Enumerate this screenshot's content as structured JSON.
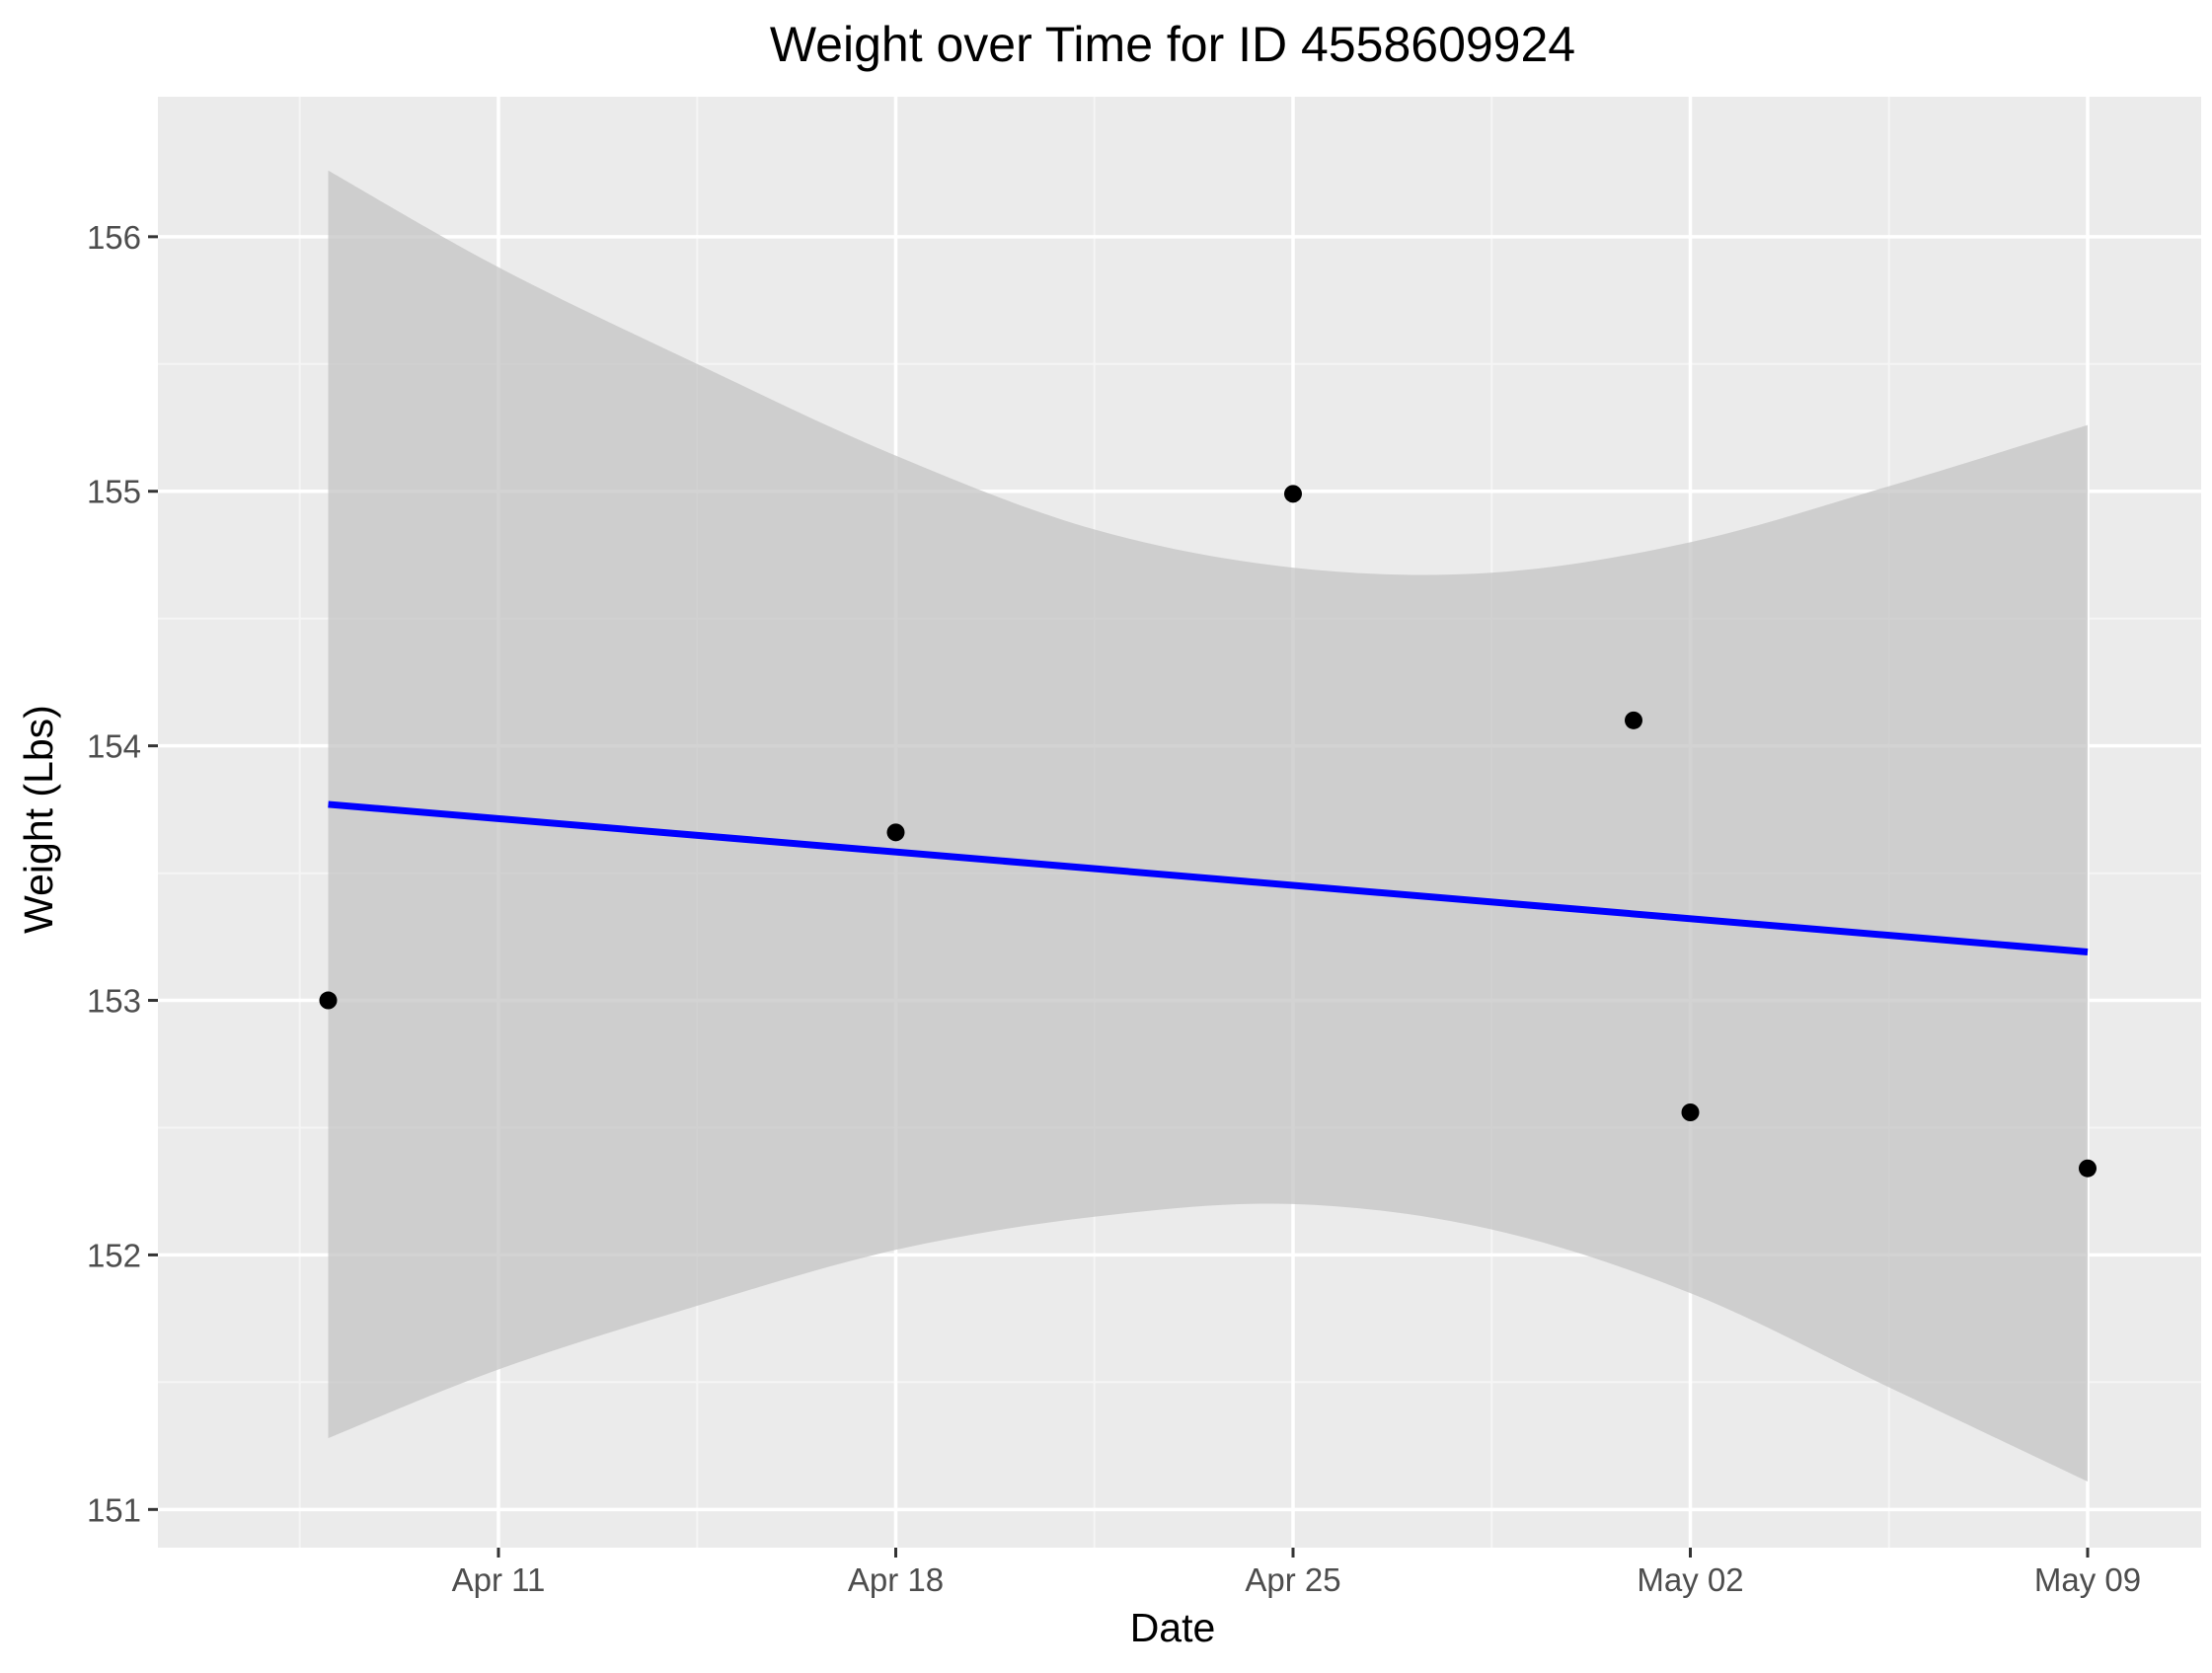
{
  "chart_data": {
    "type": "scatter",
    "title": "Weight over Time for ID 4558609924",
    "xlabel": "Date",
    "ylabel": "Weight (Lbs)",
    "x_scale": "date",
    "xlim": [
      "2016-04-05",
      "2016-05-11"
    ],
    "ylim": [
      150.85,
      156.55
    ],
    "x_ticks": [
      {
        "value": "2016-04-11",
        "label": "Apr 11"
      },
      {
        "value": "2016-04-18",
        "label": "Apr 18"
      },
      {
        "value": "2016-04-25",
        "label": "Apr 25"
      },
      {
        "value": "2016-05-02",
        "label": "May 02"
      },
      {
        "value": "2016-05-09",
        "label": "May 09"
      }
    ],
    "x_minor_ticks": [
      "2016-04-07 12:00",
      "2016-04-14 12:00",
      "2016-04-21 12:00",
      "2016-04-28 12:00",
      "2016-05-05 12:00"
    ],
    "y_ticks": [
      151,
      152,
      153,
      154,
      155,
      156
    ],
    "y_minor_ticks": [
      151.5,
      152.5,
      153.5,
      154.5,
      155.5
    ],
    "grid": true,
    "points": [
      {
        "x": "2016-04-08",
        "y": 153.0
      },
      {
        "x": "2016-04-18",
        "y": 153.66
      },
      {
        "x": "2016-04-25",
        "y": 154.99
      },
      {
        "x": "2016-05-01",
        "y": 154.1
      },
      {
        "x": "2016-05-02",
        "y": 152.56
      },
      {
        "x": "2016-05-09",
        "y": 152.34
      }
    ],
    "trend_line": {
      "method": "linear",
      "start": {
        "x": "2016-04-08",
        "y": 153.77
      },
      "end": {
        "x": "2016-05-09",
        "y": 153.19
      }
    },
    "confidence_band": [
      {
        "x": "2016-04-08",
        "lower": 151.28,
        "upper": 156.26
      },
      {
        "x": "2016-04-11",
        "lower": 151.55,
        "upper": 155.88
      },
      {
        "x": "2016-04-14 12:00",
        "lower": 151.8,
        "upper": 155.5
      },
      {
        "x": "2016-04-18",
        "lower": 152.02,
        "upper": 155.14
      },
      {
        "x": "2016-04-21 12:00",
        "lower": 152.15,
        "upper": 154.85
      },
      {
        "x": "2016-04-25",
        "lower": 152.2,
        "upper": 154.7
      },
      {
        "x": "2016-04-28 12:00",
        "lower": 152.1,
        "upper": 154.68
      },
      {
        "x": "2016-05-02",
        "lower": 151.85,
        "upper": 154.8
      },
      {
        "x": "2016-05-05 12:00",
        "lower": 151.48,
        "upper": 155.02
      },
      {
        "x": "2016-05-09",
        "lower": 151.11,
        "upper": 155.26
      }
    ],
    "colors": {
      "panel_background": "#ebebeb",
      "grid_major": "#ffffff",
      "grid_minor": "#f5f5f5",
      "points": "#000000",
      "trend_line": "#0000ff",
      "confidence_band": "#c4c4c4"
    }
  }
}
